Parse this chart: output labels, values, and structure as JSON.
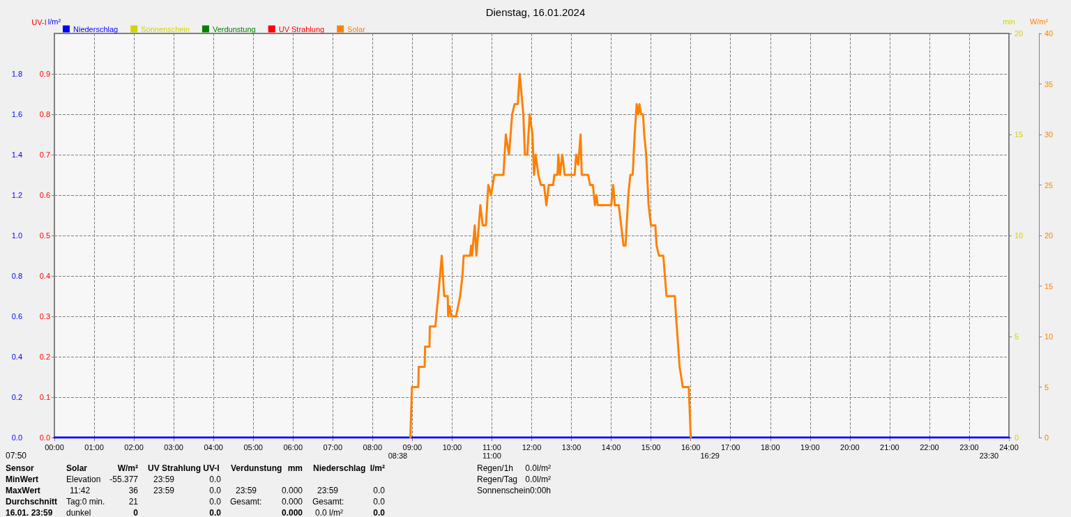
{
  "chart_data": {
    "type": "line",
    "title": "Dienstag, 16.01.2024",
    "ylabel": "l/m²",
    "y2label": "W/m²",
    "y3label": "min",
    "xlim": [
      0,
      24
    ],
    "xticks": [
      {
        "value": 0,
        "label": "00:00"
      },
      {
        "value": 1,
        "label": "01:00"
      },
      {
        "value": 2,
        "label": "02:00"
      },
      {
        "value": 3,
        "label": "03:00"
      },
      {
        "value": 4,
        "label": "04:00"
      },
      {
        "value": 5,
        "label": "05:00"
      },
      {
        "value": 6,
        "label": "06:00"
      },
      {
        "value": 7,
        "label": "07:00"
      },
      {
        "value": 8,
        "label": "08:00"
      },
      {
        "value": 9,
        "label": "09:00"
      },
      {
        "value": 10,
        "label": "10:00"
      },
      {
        "value": 11,
        "label": "11:00"
      },
      {
        "value": 12,
        "label": "12:00"
      },
      {
        "value": 13,
        "label": "13:00"
      },
      {
        "value": 14,
        "label": "14:00"
      },
      {
        "value": 15,
        "label": "15:00"
      },
      {
        "value": 16,
        "label": "16:00"
      },
      {
        "value": 17,
        "label": "17:00"
      },
      {
        "value": 18,
        "label": "18:00"
      },
      {
        "value": 19,
        "label": "19:00"
      },
      {
        "value": 20,
        "label": "20:00"
      },
      {
        "value": 21,
        "label": "21:00"
      },
      {
        "value": 22,
        "label": "22:00"
      },
      {
        "value": 23,
        "label": "23:00"
      },
      {
        "value": 24,
        "label": "24:00"
      }
    ],
    "ylim": [
      0,
      2
    ],
    "yticks": [
      {
        "value": 0,
        "label": "0.0"
      },
      {
        "value": 0.2,
        "label": "0.2"
      },
      {
        "value": 0.4,
        "label": "0.4"
      },
      {
        "value": 0.6,
        "label": "0.6"
      },
      {
        "value": 0.8,
        "label": "0.8"
      },
      {
        "value": 1,
        "label": "1.0"
      },
      {
        "value": 1.2,
        "label": "1.2"
      },
      {
        "value": 1.4,
        "label": "1.4"
      },
      {
        "value": 1.6,
        "label": "1.6"
      },
      {
        "value": 1.8,
        "label": "1.8"
      }
    ],
    "y2lim": [
      0,
      40
    ],
    "y2ticks": [
      0,
      5,
      10,
      15,
      20,
      25,
      30,
      35,
      40
    ],
    "y3lim": [
      0,
      20
    ],
    "y3ticks": [
      0,
      5,
      10,
      15,
      20
    ],
    "grid": true,
    "legend": "top left",
    "marker": "none",
    "line_style": "solid",
    "series": [
      {
        "name": "Niederschlag",
        "color": "#0000ff",
        "x": [
          0,
          24
        ],
        "values": [
          0,
          0
        ]
      },
      {
        "name": "Sonnenschein",
        "color": "#d4d400"
      },
      {
        "name": "Verdunstung",
        "color": "#008000"
      },
      {
        "name": "UV Strahlung",
        "color": "#ff0000"
      },
      {
        "name": "Solar",
        "color": "#ff8000",
        "axis": "y2",
        "x": [
          8.95,
          8.99,
          9.15,
          9.16,
          9.31,
          9.32,
          9.43,
          9.44,
          9.58,
          9.6,
          9.65,
          9.74,
          9.8,
          9.89,
          9.9,
          9.94,
          9.98,
          10.1,
          10.2,
          10.26,
          10.29,
          10.45,
          10.48,
          10.5,
          10.57,
          10.61,
          10.71,
          10.77,
          10.85,
          10.91,
          10.98,
          11.06,
          11.29,
          11.35,
          11.43,
          11.51,
          11.57,
          11.65,
          11.7,
          11.79,
          11.83,
          11.89,
          11.95,
          12.02,
          12.06,
          12.1,
          12.17,
          12.23,
          12.31,
          12.37,
          12.43,
          12.54,
          12.57,
          12.65,
          12.67,
          12.71,
          12.77,
          12.83,
          13.08,
          13.12,
          13.17,
          13.23,
          13.26,
          13.42,
          13.47,
          13.54,
          13.59,
          13.63,
          13.66,
          14.0,
          14.05,
          14.09,
          14.19,
          14.25,
          14.31,
          14.36,
          14.43,
          14.48,
          14.54,
          14.59,
          14.64,
          14.68,
          14.71,
          14.75,
          14.8,
          14.83,
          14.88,
          14.94,
          15.0,
          15.11,
          15.14,
          15.2,
          15.31,
          15.39,
          15.6,
          15.63,
          15.72,
          15.8,
          15.95,
          16.0
        ],
        "values": [
          0,
          5,
          5,
          7,
          7,
          9,
          9,
          11,
          11,
          12,
          14,
          18,
          14,
          14,
          12,
          13,
          12,
          12,
          14,
          16,
          18,
          18,
          19,
          18,
          21,
          18,
          23,
          21,
          21,
          25,
          24,
          26,
          26,
          30,
          28,
          32,
          33,
          33,
          36,
          32,
          28,
          28,
          32,
          30,
          26,
          28,
          26,
          25,
          25,
          23,
          25,
          25,
          26,
          26,
          28,
          26,
          28,
          26,
          26,
          28,
          27,
          30,
          26,
          26,
          25,
          25,
          23,
          24,
          23,
          23,
          25,
          23,
          23,
          21,
          19,
          19,
          24,
          26,
          26,
          30,
          33,
          32,
          33,
          32,
          32,
          30,
          28,
          23,
          21,
          21,
          19,
          18,
          18,
          14,
          14,
          12,
          7,
          5,
          5,
          0
        ]
      }
    ],
    "annotations": [
      "07:50",
      "Sensor",
      "Solar",
      "W/m²",
      "UV Strahlung UV-I",
      "Verdunstung",
      "mm",
      "Niederschlag",
      "l/m²",
      "MinWert",
      "Elevation",
      "-55.377",
      "23:59",
      "0.0",
      "MaxWert",
      "11:42",
      "36",
      "23:59",
      "0.0",
      "23:59",
      "0.000",
      "23:59",
      "0.0",
      "Durchschnitt",
      "Tag:0 min.",
      "21",
      "0.0",
      "Gesamt:",
      "0.000",
      "Gesamt:",
      "0.0",
      "16.01. 23:59",
      "dunkel",
      "0",
      "0.0",
      "0.000",
      "0.0 l/m²",
      "0.0",
      "Regen/1h",
      "0.0l/m²",
      "Regen/Tag",
      "0.0l/m²",
      "Sonnenschein",
      "0:00h",
      "UV-I",
      "0.0",
      "0.1",
      "0.2",
      "0.3",
      "0.4",
      "0.5",
      "0.6",
      "0.7",
      "0.8",
      "0.9",
      {
        "text": "08:38",
        "x": 8.633,
        "y": 0
      },
      {
        "text": "11:00",
        "x": 11,
        "y": 0
      },
      {
        "text": "16:29",
        "x": 16.483,
        "y": 0
      },
      {
        "text": "23:30",
        "x": 23.5,
        "y": 0
      }
    ]
  }
}
